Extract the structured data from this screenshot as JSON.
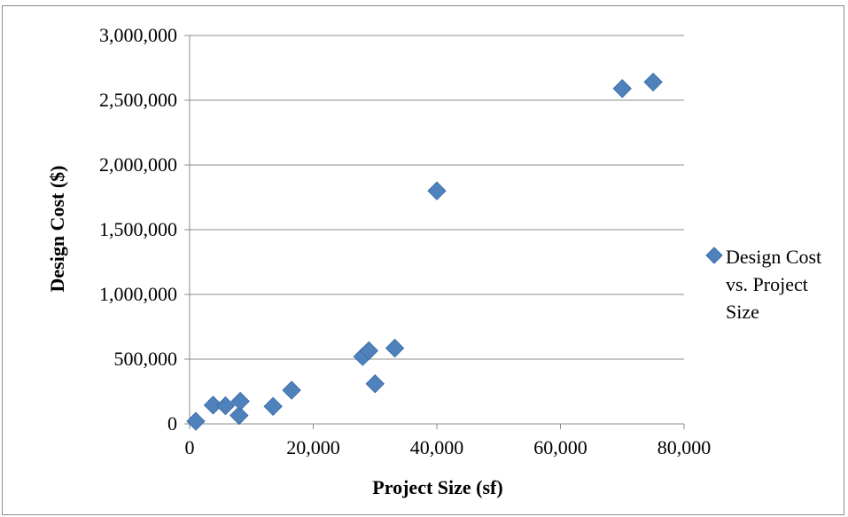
{
  "chart_data": {
    "type": "scatter",
    "title": "",
    "xlabel": "Project Size (sf)",
    "ylabel": "Design Cost ($)",
    "xlim": [
      0,
      80000
    ],
    "ylim": [
      0,
      3000000
    ],
    "x_ticks": [
      "0",
      "20,000",
      "40,000",
      "60,000",
      "80,000"
    ],
    "y_ticks": [
      "0",
      "500,000",
      "1,000,000",
      "1,500,000",
      "2,000,000",
      "2,500,000",
      "3,000,000"
    ],
    "grid": "horizontal",
    "legend_position": "right",
    "marker": "diamond",
    "color": "#4f81bd",
    "series": [
      {
        "name": "Design Cost vs. Project Size",
        "legend_lines": [
          "Design Cost",
          "vs. Project",
          "Size"
        ],
        "points": [
          {
            "x": 1000,
            "y": 20000
          },
          {
            "x": 3800,
            "y": 145000
          },
          {
            "x": 5800,
            "y": 140000
          },
          {
            "x": 8000,
            "y": 65000
          },
          {
            "x": 8200,
            "y": 175000
          },
          {
            "x": 13500,
            "y": 135000
          },
          {
            "x": 16500,
            "y": 260000
          },
          {
            "x": 28000,
            "y": 520000
          },
          {
            "x": 29000,
            "y": 565000
          },
          {
            "x": 30000,
            "y": 310000
          },
          {
            "x": 33200,
            "y": 585000
          },
          {
            "x": 40000,
            "y": 1800000
          },
          {
            "x": 70000,
            "y": 2590000
          },
          {
            "x": 75000,
            "y": 2640000
          }
        ]
      }
    ]
  }
}
